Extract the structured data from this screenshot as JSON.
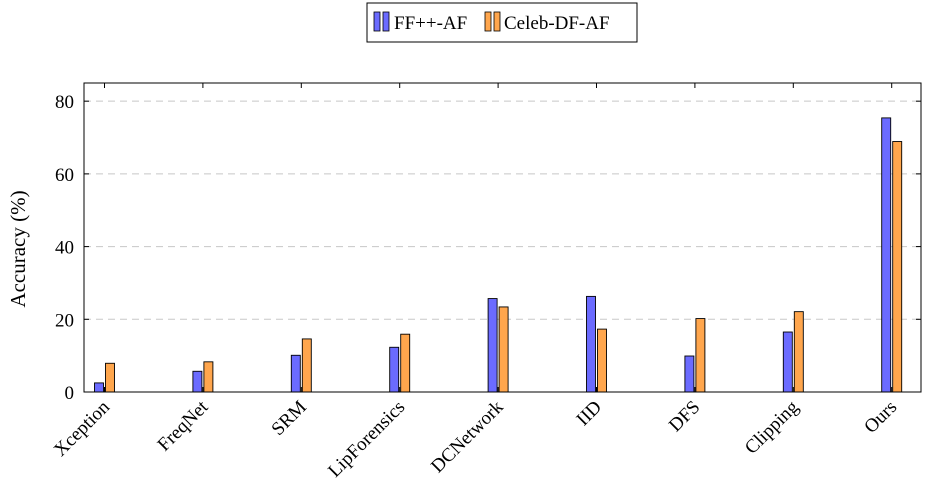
{
  "chart_data": {
    "type": "bar",
    "title": "",
    "xlabel": "",
    "ylabel": "Accuracy (%)",
    "ylim": [
      0,
      85
    ],
    "yticks": [
      0,
      20,
      40,
      60,
      80
    ],
    "grid": "y-dashed",
    "legend_position": "top-center",
    "categories": [
      "Xception",
      "FreqNet",
      "SRM",
      "LipForensics",
      "DCNetwork",
      "IID",
      "DFS",
      "Clipping",
      "Ours"
    ],
    "series": [
      {
        "name": "FF++-AF",
        "color": "#6b6bff",
        "values": [
          2.5,
          5.7,
          10.1,
          12.3,
          25.7,
          26.3,
          9.9,
          16.5,
          75.4
        ]
      },
      {
        "name": "Celeb-DF-AF",
        "color": "#ffa64d",
        "values": [
          7.9,
          8.3,
          14.6,
          15.9,
          23.4,
          17.3,
          20.2,
          22.1,
          68.9
        ]
      }
    ]
  }
}
